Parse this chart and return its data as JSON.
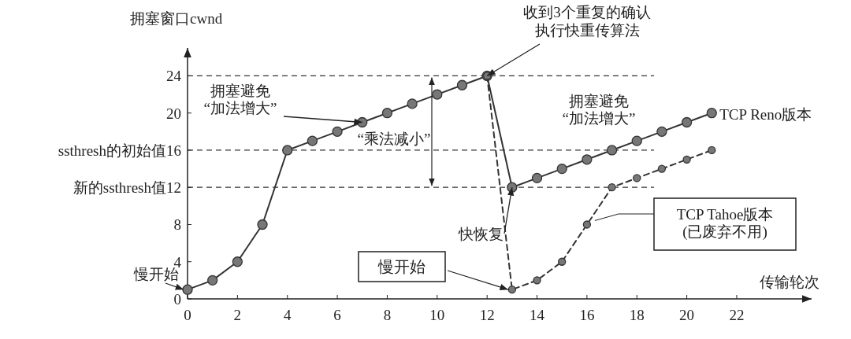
{
  "chart_data": {
    "type": "line",
    "xlabel": "传输轮次",
    "ylabel": "拥塞窗口cwnd",
    "xlim": [
      0,
      25
    ],
    "ylim": [
      0,
      27
    ],
    "xticks": [
      0,
      2,
      4,
      6,
      8,
      10,
      12,
      14,
      16,
      18,
      20,
      22
    ],
    "yticks": [
      0,
      4,
      8,
      {
        "value": 12,
        "label": "新的ssthresh值12"
      },
      {
        "value": 16,
        "label": "ssthresh的初始值16"
      },
      20,
      24
    ],
    "grid": false,
    "legend": false,
    "marker": "circle",
    "series": [
      {
        "name": "TCP Reno版本",
        "color": "#333333",
        "line_style": "solid",
        "x": [
          0,
          1,
          2,
          3,
          4,
          5,
          6,
          7,
          8,
          9,
          10,
          11,
          12,
          13,
          14,
          15,
          16,
          17,
          18,
          19,
          20,
          21
        ],
        "values": [
          1,
          2,
          4,
          8,
          16,
          17,
          18,
          19,
          20,
          21,
          22,
          23,
          24,
          12,
          13,
          14,
          15,
          16,
          17,
          18,
          19,
          20
        ]
      },
      {
        "name": "TCP Tahoe版本\n(已废弃不用)",
        "color": "#333333",
        "line_style": "dashed",
        "x": [
          12,
          13,
          14,
          15,
          16,
          17,
          18,
          19,
          20,
          21
        ],
        "values": [
          24,
          1,
          2,
          4,
          8,
          12,
          13,
          14,
          15,
          16
        ]
      }
    ],
    "ref_lines": [
      {
        "axis": "y",
        "value": 24,
        "line_style": "dashed",
        "color": "#333333"
      },
      {
        "axis": "y",
        "value": 16,
        "line_style": "dashed",
        "color": "#333333"
      },
      {
        "axis": "y",
        "value": 12,
        "line_style": "dashed",
        "color": "#333333"
      }
    ],
    "annotations": [
      {
        "text": "慢开始",
        "x": 0,
        "y": 1
      },
      {
        "text": "拥塞避免\n“加法增大”",
        "x": 7,
        "y": 19
      },
      "“乘法减小”",
      "收到3个重复的确认",
      {
        "text": "执行快重传算法",
        "x": 12,
        "y": 24
      },
      "拥塞避免\n“加法增大”",
      {
        "text": "快恢复",
        "x": 13,
        "y": 12
      },
      "慢开始"
    ]
  }
}
